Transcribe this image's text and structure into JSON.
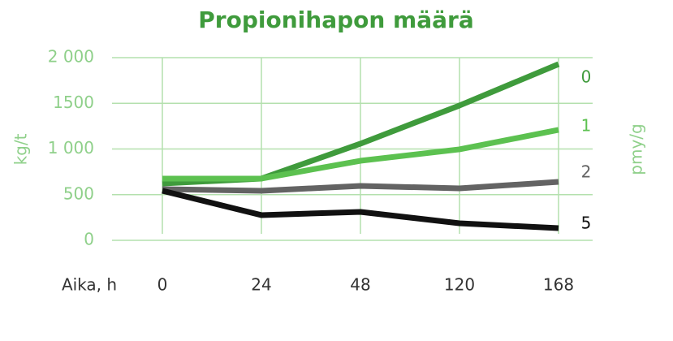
{
  "chart_data": {
    "type": "line",
    "title": "Propionihapon määrä",
    "x_label": "Aika, h",
    "y_label": "kg/t",
    "y2_label": "pmy/g",
    "categories": [
      "0",
      "24",
      "48",
      "120",
      "168"
    ],
    "series": [
      {
        "name": "0",
        "color": "#3f9b3c",
        "values": [
          622,
          676,
          1058,
          1476,
          1929
        ]
      },
      {
        "name": "1",
        "color": "#5cc150",
        "values": [
          676,
          676,
          871,
          996,
          1209
        ]
      },
      {
        "name": "2",
        "color": "#636363",
        "values": [
          560,
          542,
          596,
          569,
          640
        ]
      },
      {
        "name": "5",
        "color": "#111111",
        "values": [
          542,
          276,
          311,
          187,
          133
        ]
      }
    ],
    "ylim": [
      0,
      2000
    ],
    "yticks": [
      0,
      500,
      {
        "value": 1000,
        "label": "1 000"
      },
      1500,
      {
        "value": 2000,
        "label": "2 000"
      }
    ],
    "grid": true
  }
}
